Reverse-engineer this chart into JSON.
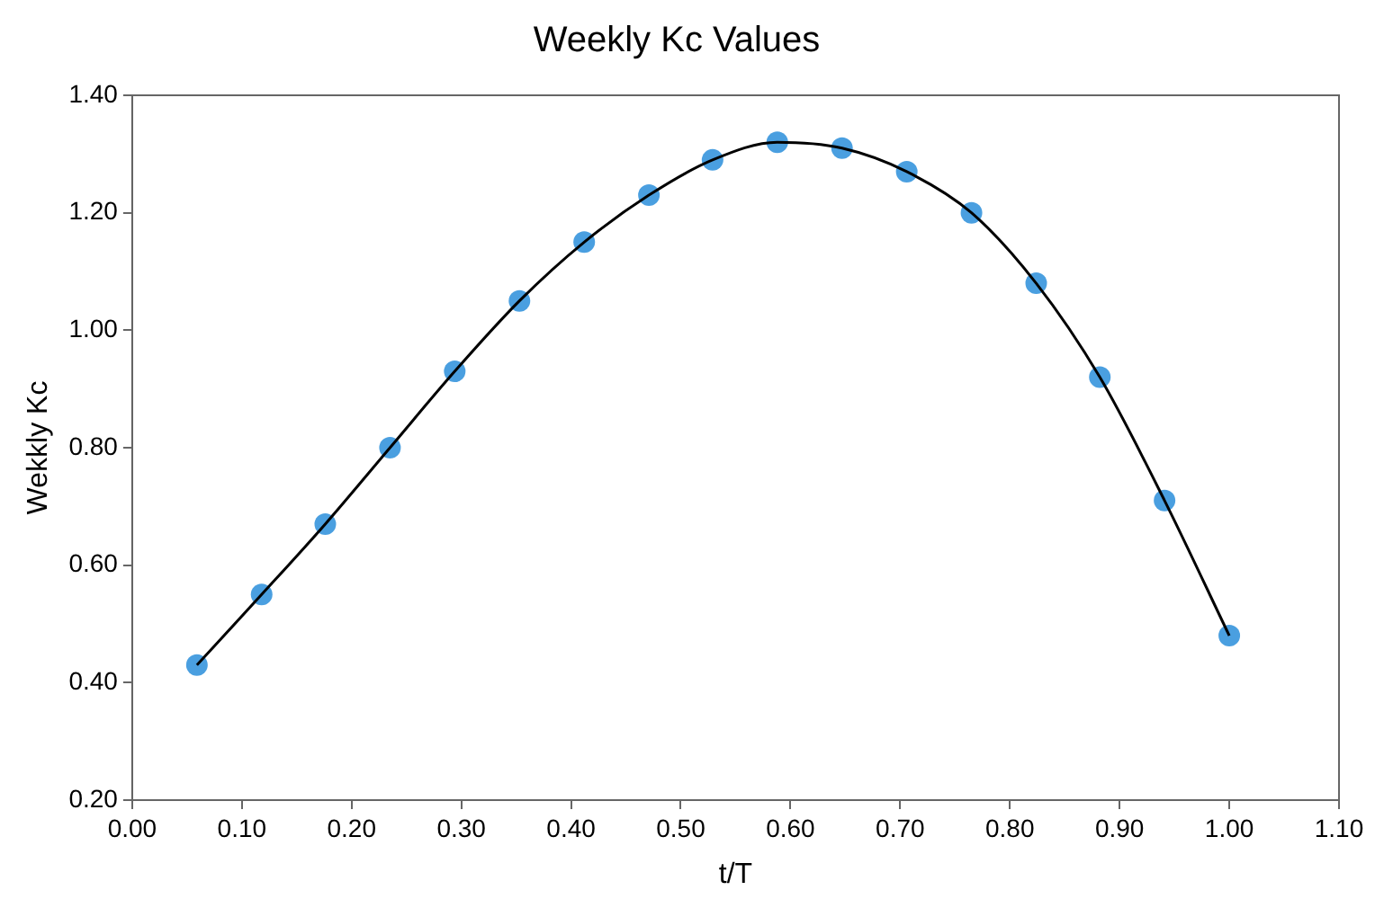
{
  "chart_data": {
    "type": "scatter",
    "title": "Weekly Kc Values",
    "xlabel": "t/T",
    "ylabel": "Wekkly Kc",
    "x": [
      0.059,
      0.118,
      0.176,
      0.235,
      0.294,
      0.353,
      0.412,
      0.471,
      0.529,
      0.588,
      0.647,
      0.706,
      0.765,
      0.824,
      0.882,
      0.941,
      1.0
    ],
    "series": [
      {
        "type": "line",
        "color": "#000000",
        "marker": "none",
        "values": [
          0.43,
          0.55,
          0.67,
          0.8,
          0.93,
          1.05,
          1.15,
          1.23,
          1.29,
          1.32,
          1.31,
          1.27,
          1.2,
          1.08,
          0.92,
          0.71,
          0.48
        ]
      },
      {
        "type": "scatter",
        "color": "#4a9fe0",
        "marker": "circle",
        "values": [
          0.43,
          0.55,
          0.67,
          0.8,
          0.93,
          1.05,
          1.15,
          1.23,
          1.29,
          1.32,
          1.31,
          1.27,
          1.2,
          1.08,
          0.92,
          0.71,
          0.48
        ]
      }
    ],
    "xlim": [
      0,
      1.1
    ],
    "xticks": [
      {
        "value": 0,
        "label": "0.00"
      },
      {
        "value": 0.1,
        "label": "0.10"
      },
      {
        "value": 0.2,
        "label": "0.20"
      },
      {
        "value": 0.3,
        "label": "0.30"
      },
      {
        "value": 0.4,
        "label": "0.40"
      },
      {
        "value": 0.5,
        "label": "0.50"
      },
      {
        "value": 0.6,
        "label": "0.60"
      },
      {
        "value": 0.7,
        "label": "0.70"
      },
      {
        "value": 0.8,
        "label": "0.80"
      },
      {
        "value": 0.9,
        "label": "0.90"
      },
      {
        "value": 1.0,
        "label": "1.00"
      },
      {
        "value": 1.1,
        "label": "1.10"
      }
    ],
    "ylim": [
      0.2,
      1.4
    ],
    "yticks": [
      {
        "value": 0.2,
        "label": "0.20"
      },
      {
        "value": 0.4,
        "label": "0.40"
      },
      {
        "value": 0.6,
        "label": "0.60"
      },
      {
        "value": 0.8,
        "label": "0.80"
      },
      {
        "value": 1.0,
        "label": "1.00"
      },
      {
        "value": 1.2,
        "label": "1.20"
      },
      {
        "value": 1.4,
        "label": "1.40"
      }
    ],
    "grid": false,
    "legend": false
  }
}
